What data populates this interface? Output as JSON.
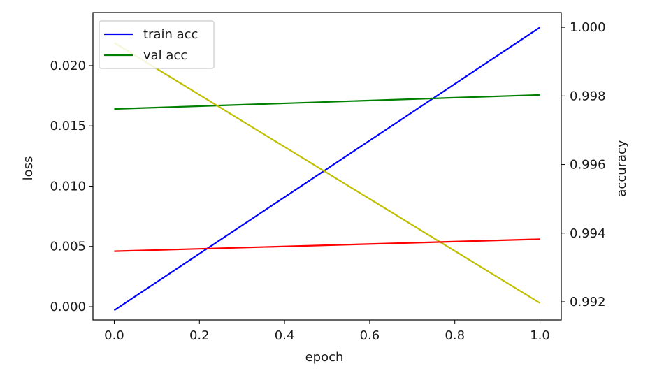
{
  "chart_data": {
    "type": "line",
    "title": "",
    "xlabel": "epoch",
    "ylabel_left": "loss",
    "ylabel_right": "accuracy",
    "x": [
      0.0,
      1.0
    ],
    "xlim": [
      -0.05,
      1.05
    ],
    "ylim_left": [
      -0.0011,
      0.0244
    ],
    "ylim_right": [
      0.99147,
      1.00043
    ],
    "xticks": [
      0.0,
      0.2,
      0.4,
      0.6,
      0.8,
      1.0
    ],
    "xtick_labels": [
      "0.0",
      "0.2",
      "0.4",
      "0.6",
      "0.8",
      "1.0"
    ],
    "yticks_left": [
      0.0,
      0.005,
      0.01,
      0.015,
      0.02
    ],
    "ytick_labels_left": [
      "0.000",
      "0.005",
      "0.010",
      "0.015",
      "0.020"
    ],
    "yticks_right": [
      0.992,
      0.994,
      0.996,
      0.998,
      1.0
    ],
    "ytick_labels_right": [
      "0.992",
      "0.994",
      "0.996",
      "0.998",
      "1.000"
    ],
    "grid": false,
    "legend_position": "upper-left",
    "series": [
      {
        "axis": "right",
        "color": "#0000ff",
        "values": [
          0.99175,
          1.0
        ],
        "legend": true,
        "name": "train acc"
      },
      {
        "axis": "right",
        "color": "#008000",
        "values": [
          0.99762,
          0.99803
        ],
        "legend": true,
        "name": "val acc"
      },
      {
        "axis": "left",
        "color": "#bfbf00",
        "values": [
          0.0219,
          0.0003
        ],
        "legend": false
      },
      {
        "axis": "left",
        "color": "#ff0000",
        "values": [
          0.0046,
          0.0056
        ],
        "legend": false
      }
    ]
  }
}
